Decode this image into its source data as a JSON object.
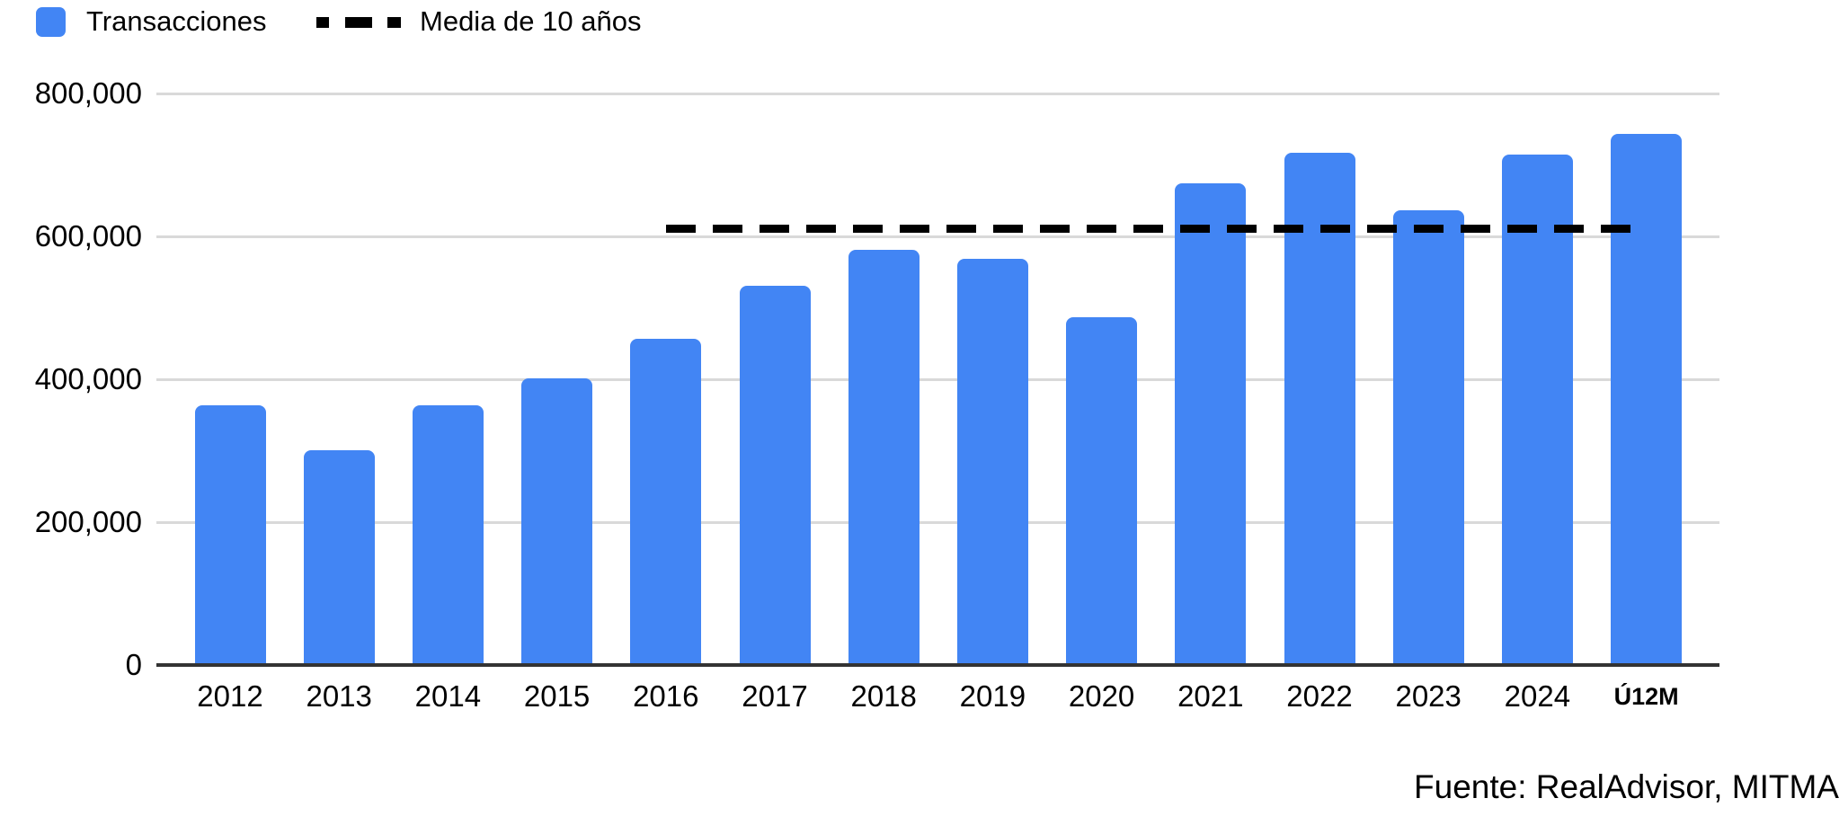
{
  "legend": {
    "bars_label": "Transacciones",
    "average_label": "Media de 10 años"
  },
  "source_note": "Fuente: RealAdvisor, MITMA",
  "colors": {
    "bar": "#4285F4",
    "average_line": "#000000",
    "gridline": "#D9D9D9",
    "axis_line": "#333333",
    "text": "#000000"
  },
  "chart_data": {
    "type": "bar",
    "title": "",
    "xlabel": "",
    "ylabel": "",
    "categories": [
      "2012",
      "2013",
      "2014",
      "2015",
      "2016",
      "2017",
      "2018",
      "2019",
      "2020",
      "2021",
      "2022",
      "2023",
      "2024",
      "Ú12M"
    ],
    "series": [
      {
        "name": "Transacciones",
        "type": "bar",
        "values": [
          363000,
          301000,
          364000,
          401000,
          457000,
          531000,
          581000,
          568000,
          487000,
          674000,
          717000,
          637000,
          714000,
          744000
        ]
      },
      {
        "name": "Media de 10 años",
        "type": "dashed-line",
        "value": 611000,
        "start_category": "2016",
        "end_category": "Ú12M"
      }
    ],
    "ylim": [
      0,
      800000
    ],
    "yticks": [
      0,
      200000,
      400000,
      600000,
      800000
    ],
    "ytick_labels": [
      "0",
      "200,000",
      "400,000",
      "600,000",
      "800,000"
    ],
    "grid": true,
    "legend_position": "top-left",
    "emphasized_category": "Ú12M"
  }
}
